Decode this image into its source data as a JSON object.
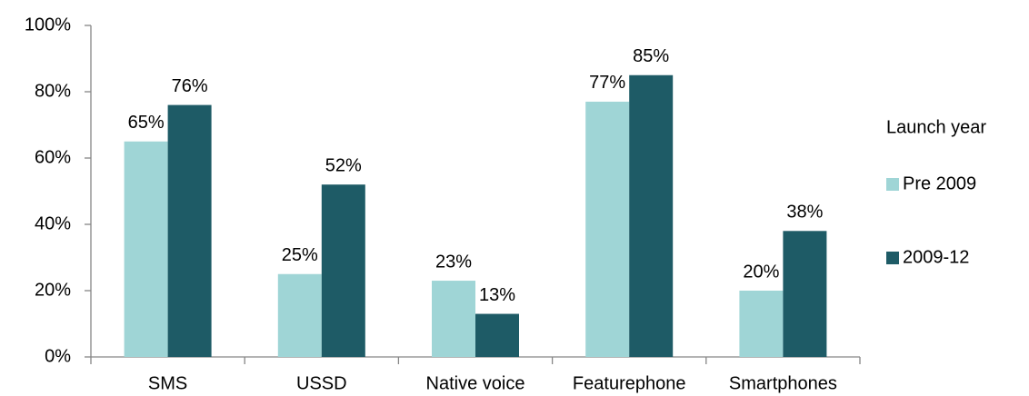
{
  "chart_data": {
    "type": "bar",
    "categories": [
      "SMS",
      "USSD",
      "Native voice",
      "Featurephone",
      "Smartphones"
    ],
    "legend_title": "Launch year",
    "series": [
      {
        "name": "Pre 2009",
        "color": "#9fd5d6",
        "values": [
          65,
          25,
          23,
          77,
          20
        ],
        "value_labels": [
          "65%",
          "25%",
          "23%",
          "77%",
          "20%"
        ]
      },
      {
        "name": "2009-12",
        "color": "#1e5b66",
        "values": [
          76,
          52,
          13,
          85,
          38
        ],
        "value_labels": [
          "76%",
          "52%",
          "13%",
          "85%",
          "38%"
        ]
      }
    ],
    "ylim": [
      0,
      100
    ],
    "yticks": [
      {
        "value": 0,
        "label": "0%"
      },
      {
        "value": 20,
        "label": "20%"
      },
      {
        "value": 40,
        "label": "40%"
      },
      {
        "value": 60,
        "label": "60%"
      },
      {
        "value": 80,
        "label": "80%"
      },
      {
        "value": 100,
        "label": "100%"
      }
    ],
    "legend": "right"
  }
}
